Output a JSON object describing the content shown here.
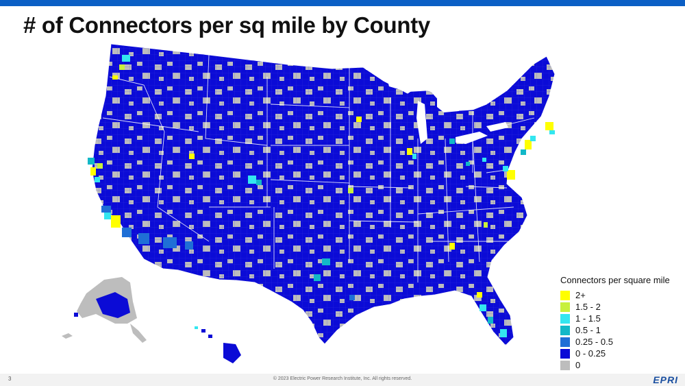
{
  "slide": {
    "title": "# of Connectors per sq mile by County",
    "slide_number": "3",
    "copyright": "© 2023 Electric Power Research Institute, Inc. All rights reserved.",
    "logo_text": "EPRI"
  },
  "legend": {
    "title": "Connectors per square mile",
    "items": [
      {
        "label": "2+",
        "color": "#ffff00"
      },
      {
        "label": "1.5 - 2",
        "color": "#c8f03c"
      },
      {
        "label": "1 - 1.5",
        "color": "#33e6f0"
      },
      {
        "label": "0.5 - 1",
        "color": "#12b8c8"
      },
      {
        "label": "0.25 - 0.5",
        "color": "#1f6fd6"
      },
      {
        "label": "0 - 0.25",
        "color": "#0b0bd6"
      },
      {
        "label": "0",
        "color": "#bdbdbd"
      }
    ]
  },
  "colors": {
    "accent_bar": "#0b5fc5",
    "county_low": "#0b0bd6",
    "county_zero": "#bdbdbd"
  }
}
